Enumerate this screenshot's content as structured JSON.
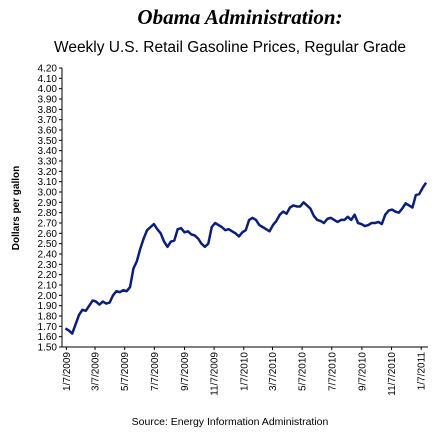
{
  "chart_data": {
    "type": "line",
    "title": "Obama Administration:",
    "subtitle": "Weekly U.S. Retail Gasoline Prices, Regular Grade",
    "y_label": "Dollars per gallon",
    "source": "Source:  Energy Information Administration",
    "x": [
      "1/5/2009",
      "1/12/2009",
      "1/19/2009",
      "1/26/2009",
      "2/2/2009",
      "2/9/2009",
      "2/16/2009",
      "2/23/2009",
      "3/2/2009",
      "3/9/2009",
      "3/16/2009",
      "3/23/2009",
      "3/30/2009",
      "4/6/2009",
      "4/13/2009",
      "4/20/2009",
      "4/27/2009",
      "5/4/2009",
      "5/11/2009",
      "5/18/2009",
      "5/25/2009",
      "6/1/2009",
      "6/8/2009",
      "6/15/2009",
      "6/22/2009",
      "6/29/2009",
      "7/6/2009",
      "7/13/2009",
      "7/20/2009",
      "7/27/2009",
      "8/3/2009",
      "8/10/2009",
      "8/17/2009",
      "8/24/2009",
      "8/31/2009",
      "9/7/2009",
      "9/14/2009",
      "9/21/2009",
      "9/28/2009",
      "10/5/2009",
      "10/12/2009",
      "10/19/2009",
      "10/26/2009",
      "11/2/2009",
      "11/9/2009",
      "11/16/2009",
      "11/23/2009",
      "11/30/2009",
      "12/7/2009",
      "12/14/2009",
      "12/21/2009",
      "12/28/2009",
      "1/4/2010",
      "1/11/2010",
      "1/18/2010",
      "1/25/2010",
      "2/1/2010",
      "2/8/2010",
      "2/15/2010",
      "2/22/2010",
      "3/1/2010",
      "3/8/2010",
      "3/15/2010",
      "3/22/2010",
      "3/29/2010",
      "4/5/2010",
      "4/12/2010",
      "4/19/2010",
      "4/26/2010",
      "5/3/2010",
      "5/10/2010",
      "5/17/2010",
      "5/24/2010",
      "5/31/2010",
      "6/7/2010",
      "6/14/2010",
      "6/21/2010",
      "6/28/2010",
      "7/5/2010",
      "7/12/2010",
      "7/19/2010",
      "7/26/2010",
      "8/2/2010",
      "8/9/2010",
      "8/16/2010",
      "8/23/2010",
      "8/30/2010",
      "9/6/2010",
      "9/13/2010",
      "9/20/2010",
      "9/27/2010",
      "10/4/2010",
      "10/11/2010",
      "10/18/2010",
      "10/25/2010",
      "11/1/2010",
      "11/8/2010",
      "11/15/2010",
      "11/22/2010",
      "11/29/2010",
      "12/6/2010",
      "12/13/2010",
      "12/20/2010",
      "12/27/2010",
      "1/3/2011",
      "1/10/2011",
      "1/17/2011"
    ],
    "series": [
      {
        "name": "Regular Grade",
        "color": "#0b1f78",
        "values": [
          1.68,
          1.66,
          1.63,
          1.72,
          1.81,
          1.86,
          1.85,
          1.9,
          1.95,
          1.94,
          1.91,
          1.94,
          1.92,
          1.93,
          2.0,
          2.04,
          2.03,
          2.05,
          2.04,
          2.08,
          2.26,
          2.33,
          2.45,
          2.55,
          2.63,
          2.66,
          2.69,
          2.64,
          2.6,
          2.52,
          2.47,
          2.52,
          2.53,
          2.64,
          2.65,
          2.61,
          2.62,
          2.59,
          2.58,
          2.55,
          2.5,
          2.47,
          2.5,
          2.66,
          2.7,
          2.68,
          2.66,
          2.63,
          2.64,
          2.62,
          2.6,
          2.57,
          2.61,
          2.63,
          2.73,
          2.75,
          2.73,
          2.68,
          2.66,
          2.64,
          2.62,
          2.68,
          2.72,
          2.78,
          2.81,
          2.79,
          2.85,
          2.87,
          2.86,
          2.86,
          2.9,
          2.87,
          2.84,
          2.77,
          2.73,
          2.72,
          2.7,
          2.74,
          2.75,
          2.73,
          2.71,
          2.73,
          2.73,
          2.76,
          2.73,
          2.78,
          2.7,
          2.69,
          2.67,
          2.68,
          2.7,
          2.7,
          2.71,
          2.69,
          2.78,
          2.82,
          2.83,
          2.81,
          2.8,
          2.84,
          2.89,
          2.87,
          2.85,
          2.97,
          2.98,
          3.04,
          3.09
        ]
      }
    ],
    "xlim": [
      "12/29/2008",
      "1/21/2011"
    ],
    "xticks": [
      "1/7/2009",
      "3/7/2009",
      "5/7/2009",
      "7/7/2009",
      "9/7/2009",
      "11/7/2009",
      "1/7/2010",
      "3/7/2010",
      "5/7/2010",
      "7/7/2010",
      "9/7/2010",
      "11/7/2010",
      "1/7/2011"
    ],
    "ylim": [
      1.5,
      4.2
    ],
    "yticks": [
      {
        "value": 1.5,
        "label": "1.50"
      },
      {
        "value": 1.6,
        "label": "1.60"
      },
      {
        "value": 1.7,
        "label": "1.70"
      },
      {
        "value": 1.8,
        "label": "1.80"
      },
      {
        "value": 1.9,
        "label": "1.90"
      },
      {
        "value": 2.0,
        "label": "2.00"
      },
      {
        "value": 2.1,
        "label": "2.10"
      },
      {
        "value": 2.2,
        "label": "2.20"
      },
      {
        "value": 2.3,
        "label": "2.30"
      },
      {
        "value": 2.4,
        "label": "2.40"
      },
      {
        "value": 2.5,
        "label": "2.50"
      },
      {
        "value": 2.6,
        "label": "2.60"
      },
      {
        "value": 2.7,
        "label": "2.70"
      },
      {
        "value": 2.8,
        "label": "2.80"
      },
      {
        "value": 2.9,
        "label": "2.90"
      },
      {
        "value": 3.0,
        "label": "3.00"
      },
      {
        "value": 3.1,
        "label": "3.10"
      },
      {
        "value": 3.2,
        "label": "3.20"
      },
      {
        "value": 3.3,
        "label": "3.30"
      },
      {
        "value": 3.4,
        "label": "3.40"
      },
      {
        "value": 3.5,
        "label": "3.50"
      },
      {
        "value": 3.6,
        "label": "3.60"
      },
      {
        "value": 3.7,
        "label": "3.70"
      },
      {
        "value": 3.8,
        "label": "3.80"
      },
      {
        "value": 3.9,
        "label": "3.90"
      },
      {
        "value": 4.0,
        "label": "4.00"
      },
      {
        "value": 4.1,
        "label": "4.10"
      },
      {
        "value": 4.2,
        "label": "4.20"
      }
    ],
    "grid": false
  }
}
